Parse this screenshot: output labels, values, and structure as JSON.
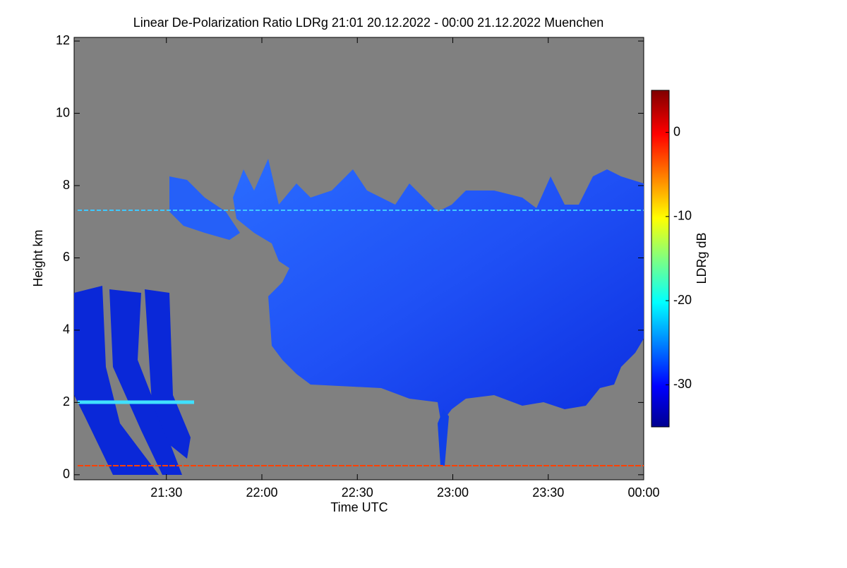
{
  "chart_data": {
    "type": "heatmap",
    "title": "Linear De-Polarization Ratio LDRg   21:01 20.12.2022 - 00:00 21.12.2022 Muenchen",
    "x_label": "Time UTC",
    "y_label": "Height km",
    "colorbar_label": "LDRg dB",
    "xlim": [
      21.0167,
      24
    ],
    "xticks": [
      {
        "value": 21.5,
        "label": "21:30"
      },
      {
        "value": 22,
        "label": "22:00"
      },
      {
        "value": 22.5,
        "label": "22:30"
      },
      {
        "value": 23,
        "label": "23:00"
      },
      {
        "value": 23.5,
        "label": "23:30"
      },
      {
        "value": 24,
        "label": "00:00"
      }
    ],
    "ylim": [
      -0.14,
      12.1
    ],
    "yticks": [
      0,
      2,
      4,
      6,
      8,
      10,
      12
    ],
    "clim": [
      -35,
      5
    ],
    "cticks": [
      0,
      -10,
      -20,
      -30
    ],
    "colormap": "jet"
  }
}
